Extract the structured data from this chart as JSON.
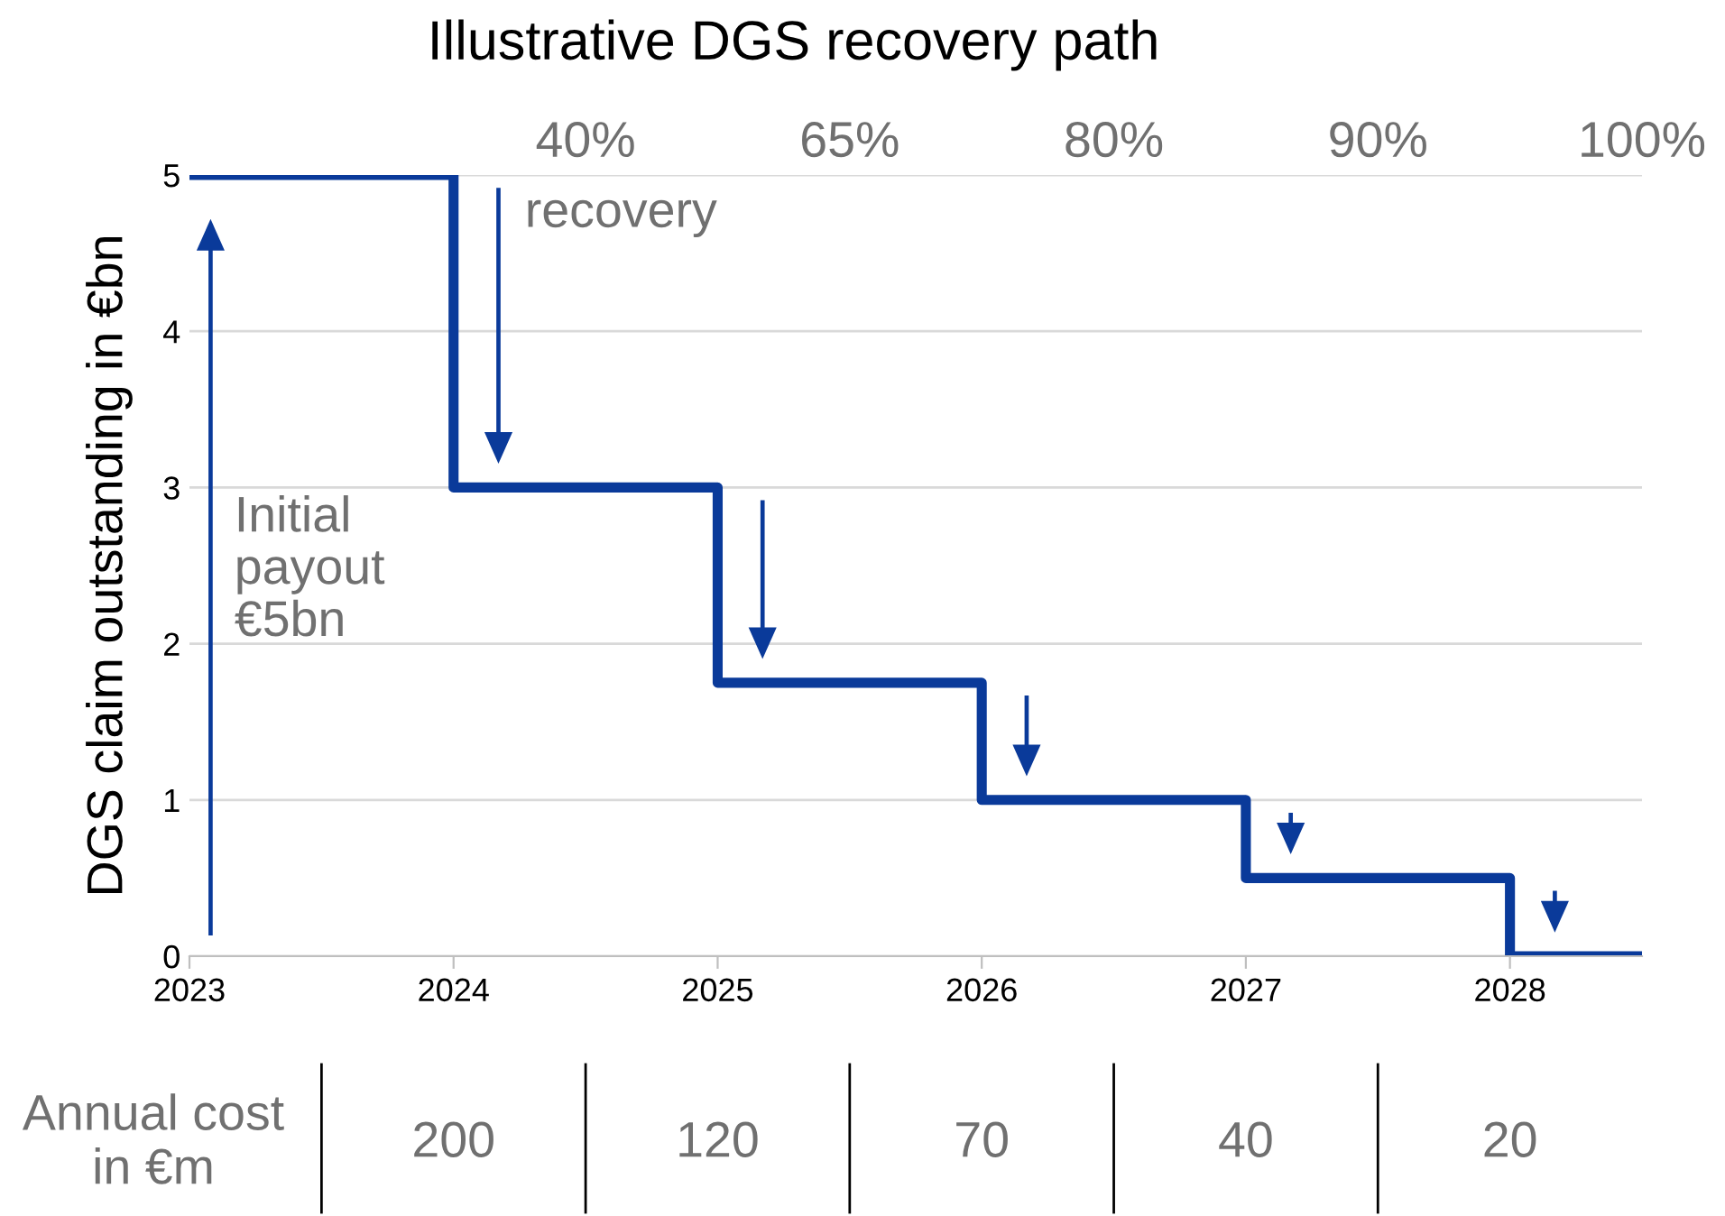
{
  "chart_data": {
    "type": "step",
    "title": "Illustrative DGS recovery path",
    "ylabel": "DGS claim outstanding in €bn",
    "x": [
      2023,
      2024,
      2025,
      2026,
      2027,
      2028,
      2028.5
    ],
    "series": [
      {
        "color": "#0a3a9a",
        "values": [
          5,
          3,
          1.75,
          1,
          0.5,
          0,
          0
        ]
      }
    ],
    "xlim": [
      2023,
      2028.5
    ],
    "xticks": [
      2023,
      2024,
      2025,
      2026,
      2027,
      2028
    ],
    "ylim": [
      0,
      5
    ],
    "yticks": [
      0,
      1,
      2,
      3,
      4,
      5
    ],
    "grid": "y",
    "line_style": "solid",
    "marker": "none",
    "annotations": [
      "recovery",
      "Initial\npayout\n€5bn",
      "40%",
      "65%",
      "80%",
      "90%",
      "100%",
      "Annual cost\nin €m",
      "200",
      "120",
      "70",
      "40",
      "20"
    ]
  }
}
